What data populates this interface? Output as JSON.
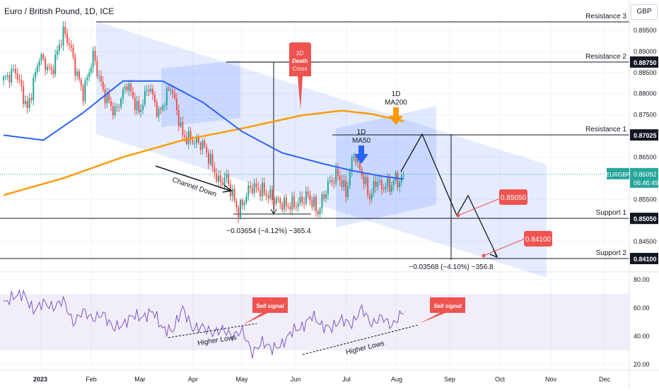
{
  "chart_data": {
    "type": "candlestick",
    "title": "Euro / British Pound, 1D, ICE",
    "currency": "GBP",
    "symbol": "EURGBP",
    "last_price": "0.86092",
    "countdown": "06:46:49",
    "x_ticks": [
      "2023",
      "Feb",
      "Mar",
      "Apr",
      "May",
      "Jun",
      "Jul",
      "Aug",
      "Sep",
      "Oct",
      "Nov",
      "Dec"
    ],
    "price_ticks": [
      "0.89500",
      "0.89000",
      "0.88500",
      "0.88000",
      "0.87500",
      "0.86500",
      "0.85500",
      "0.84500"
    ],
    "ylim": [
      0.8395,
      0.8985
    ],
    "levels": [
      {
        "name": "Resistance 3",
        "price": 0.897,
        "label": null
      },
      {
        "name": "Resistance 2",
        "price": 0.8875,
        "label": "0.88750"
      },
      {
        "name": "Resistance 1",
        "price": 0.87025,
        "label": "0.87025"
      },
      {
        "name": "Support 1",
        "price": 0.8505,
        "label": "0.85050"
      },
      {
        "name": "Support 2",
        "price": 0.841,
        "label": "0.84100"
      }
    ],
    "annotations": {
      "death_cross": [
        "1D",
        "Death",
        "Cross"
      ],
      "ma200": [
        "1D",
        "MA200"
      ],
      "ma50": [
        "1D",
        "MA50"
      ],
      "channel": "Channel Down",
      "measure1": "−0.03654 (−4.12%) −365.4",
      "measure2": "−0.03568 (−4.10%) −356.8",
      "target1": "0.85050",
      "target2": "0.84100"
    },
    "series": [
      {
        "name": "EURGBP",
        "kind": "candles",
        "color_up": "#26a69a",
        "color_down": "#ef5350",
        "anchor_days": [
          0,
          6,
          12,
          18,
          24,
          30,
          33,
          36,
          40,
          45,
          50,
          56,
          62,
          68,
          73,
          78,
          84,
          90,
          95,
          100,
          104,
          108,
          112,
          118,
          124,
          130,
          136,
          142,
          148,
          153,
          158,
          163,
          168,
          172,
          176,
          180,
          184,
          188,
          190,
          192,
          194,
          196,
          198,
          201
        ],
        "anchor_close": [
          0.8832,
          0.8856,
          0.8762,
          0.8889,
          0.885,
          0.8946,
          0.892,
          0.886,
          0.88,
          0.889,
          0.8805,
          0.8755,
          0.8825,
          0.8755,
          0.882,
          0.875,
          0.882,
          0.87,
          0.869,
          0.868,
          0.864,
          0.859,
          0.86,
          0.852,
          0.858,
          0.857,
          0.855,
          0.8535,
          0.854,
          0.856,
          0.852,
          0.8585,
          0.861,
          0.8565,
          0.866,
          0.861,
          0.8555,
          0.86,
          0.857,
          0.859,
          0.8575,
          0.86,
          0.859,
          0.86092
        ]
      },
      {
        "name": "MA50",
        "color": "#2962ff",
        "days": [
          0,
          20,
          40,
          60,
          80,
          100,
          120,
          140,
          160,
          175,
          190,
          201
        ],
        "values": [
          0.8702,
          0.869,
          0.8755,
          0.883,
          0.883,
          0.878,
          0.871,
          0.866,
          0.8635,
          0.8618,
          0.8605,
          0.8598
        ]
      },
      {
        "name": "MA200",
        "color": "#ff9800",
        "days": [
          0,
          30,
          60,
          90,
          120,
          150,
          170,
          185,
          201
        ],
        "values": [
          0.856,
          0.86,
          0.865,
          0.869,
          0.8718,
          0.8749,
          0.876,
          0.8752,
          0.8735
        ]
      }
    ],
    "rsi": {
      "ticks": [
        "80.00",
        "60.00",
        "40.00",
        "20.00"
      ],
      "ylim": [
        16,
        84
      ],
      "band": [
        30,
        70
      ],
      "days": [
        0,
        5,
        10,
        15,
        20,
        25,
        30,
        35,
        40,
        45,
        50,
        55,
        60,
        65,
        70,
        75,
        80,
        85,
        90,
        95,
        100,
        105,
        110,
        115,
        120,
        125,
        130,
        135,
        140,
        145,
        150,
        155,
        160,
        165,
        170,
        175,
        180,
        185,
        190,
        195,
        201
      ],
      "values": [
        63,
        68,
        70,
        58,
        64,
        60,
        66,
        49,
        58,
        52,
        56,
        46,
        48,
        55,
        53,
        58,
        45,
        44,
        60,
        45,
        47,
        42,
        45,
        40,
        44,
        28,
        36,
        31,
        34,
        44,
        46,
        55,
        47,
        46,
        52,
        48,
        60,
        48,
        54,
        47,
        58
      ],
      "higher_lows": "Higher Lows",
      "sell_signal": "Sell signal"
    }
  }
}
